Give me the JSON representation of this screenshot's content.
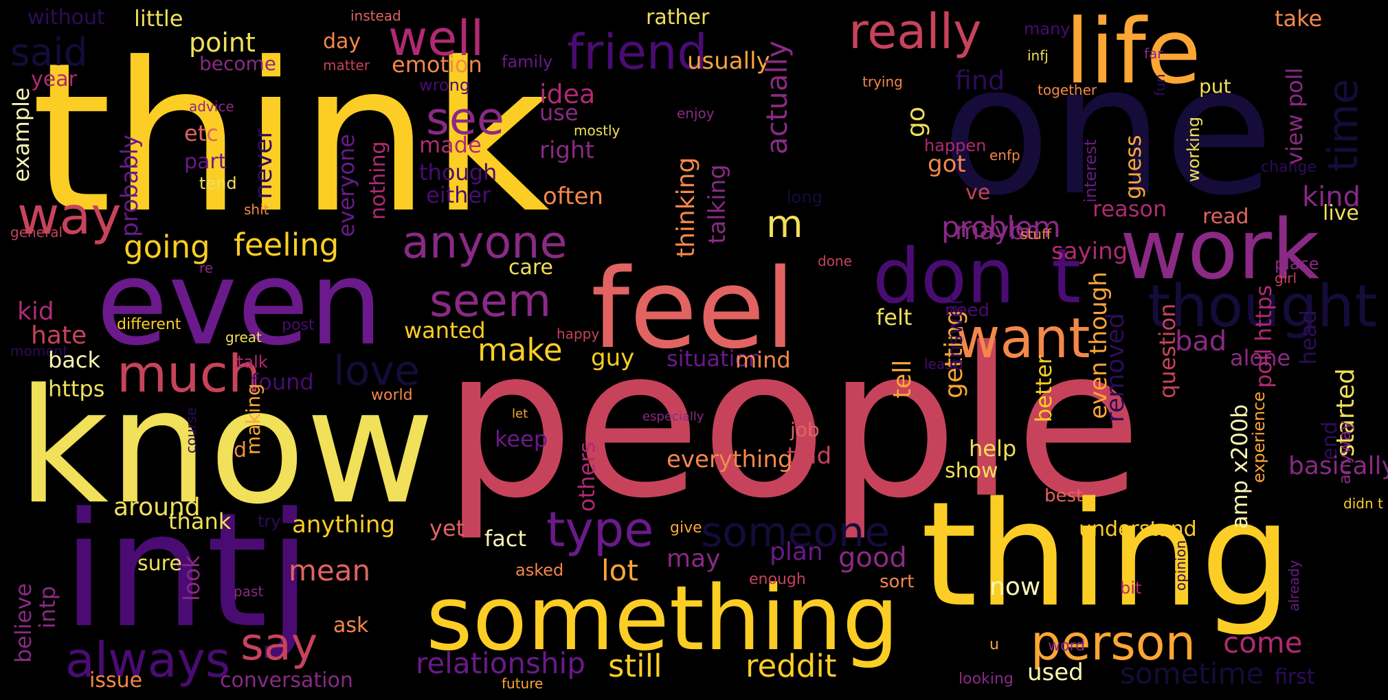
{
  "palette": {
    "background": "#000000",
    "c1": "#fcce25",
    "c2": "#f0e05a",
    "c3": "#fca636",
    "c4": "#f48849",
    "c5": "#e16462",
    "c6": "#c7435c",
    "c7": "#b02a73",
    "c8": "#8a2a85",
    "c9": "#6a1a8a",
    "c10": "#4a0c72",
    "c11": "#2d0c5a",
    "c12": "#150c3a",
    "c13": "#f8f5b4"
  },
  "words": [
    {
      "text": "think"
    },
    {
      "text": "people"
    },
    {
      "text": "know"
    },
    {
      "text": "one"
    },
    {
      "text": "intj"
    },
    {
      "text": "thing"
    },
    {
      "text": "even"
    },
    {
      "text": "feel"
    },
    {
      "text": "something"
    },
    {
      "text": "life"
    },
    {
      "text": "work"
    },
    {
      "text": "don"
    },
    {
      "text": "t"
    },
    {
      "text": "thought"
    },
    {
      "text": "want"
    },
    {
      "text": "person"
    },
    {
      "text": "always"
    },
    {
      "text": "way"
    },
    {
      "text": "friend"
    },
    {
      "text": "well"
    },
    {
      "text": "really"
    },
    {
      "text": "much"
    },
    {
      "text": "anyone"
    },
    {
      "text": "seem"
    },
    {
      "text": "see"
    },
    {
      "text": "say"
    },
    {
      "text": "love"
    },
    {
      "text": "someone"
    },
    {
      "text": "type"
    },
    {
      "text": "time"
    },
    {
      "text": "said"
    },
    {
      "text": "m"
    },
    {
      "text": "feeling"
    },
    {
      "text": "going"
    },
    {
      "text": "make"
    },
    {
      "text": "still"
    },
    {
      "text": "reddit"
    },
    {
      "text": "relationship"
    },
    {
      "text": "sometime"
    },
    {
      "text": "come"
    },
    {
      "text": "mean"
    },
    {
      "text": "lot"
    },
    {
      "text": "good"
    },
    {
      "text": "problem"
    },
    {
      "text": "kind"
    },
    {
      "text": "idea"
    },
    {
      "text": "point"
    },
    {
      "text": "little"
    },
    {
      "text": "without"
    },
    {
      "text": "rather"
    },
    {
      "text": "take"
    },
    {
      "text": "instead"
    },
    {
      "text": "many"
    },
    {
      "text": "day"
    },
    {
      "text": "emotion"
    },
    {
      "text": "usually"
    },
    {
      "text": "find"
    },
    {
      "text": "become"
    },
    {
      "text": "matter"
    },
    {
      "text": "family"
    },
    {
      "text": "year"
    },
    {
      "text": "wrong"
    },
    {
      "text": "far"
    },
    {
      "text": "infj"
    },
    {
      "text": "together"
    },
    {
      "text": "put"
    },
    {
      "text": "view poll"
    },
    {
      "text": "example"
    },
    {
      "text": "advice"
    },
    {
      "text": "use"
    },
    {
      "text": "mostly"
    },
    {
      "text": "enjoy"
    },
    {
      "text": "actually"
    },
    {
      "text": "trying"
    },
    {
      "text": "etc"
    },
    {
      "text": "made"
    },
    {
      "text": "right"
    },
    {
      "text": "though"
    },
    {
      "text": "either"
    },
    {
      "text": "often"
    },
    {
      "text": "part"
    },
    {
      "text": "tend"
    },
    {
      "text": "probably"
    },
    {
      "text": "never"
    },
    {
      "text": "everyone"
    },
    {
      "text": "nothing"
    },
    {
      "text": "thinking"
    },
    {
      "text": "talking"
    },
    {
      "text": "go"
    },
    {
      "text": "got"
    },
    {
      "text": "ve"
    },
    {
      "text": "happen"
    },
    {
      "text": "enfp"
    },
    {
      "text": "interest"
    },
    {
      "text": "guess"
    },
    {
      "text": "working"
    },
    {
      "text": "change"
    },
    {
      "text": "fun"
    },
    {
      "text": "long"
    },
    {
      "text": "reason"
    },
    {
      "text": "read"
    },
    {
      "text": "live"
    },
    {
      "text": "shit"
    },
    {
      "text": "general"
    },
    {
      "text": "maybe"
    },
    {
      "text": "stuff"
    },
    {
      "text": "done"
    },
    {
      "text": "saying"
    },
    {
      "text": "place"
    },
    {
      "text": "girl"
    },
    {
      "text": "re"
    },
    {
      "text": "care"
    },
    {
      "text": "kid"
    },
    {
      "text": "felt"
    },
    {
      "text": "need"
    },
    {
      "text": "hate"
    },
    {
      "text": "different"
    },
    {
      "text": "post"
    },
    {
      "text": "wanted"
    },
    {
      "text": "happy"
    },
    {
      "text": "great"
    },
    {
      "text": "moment"
    },
    {
      "text": "bad"
    },
    {
      "text": "alone"
    },
    {
      "text": "guy"
    },
    {
      "text": "situation"
    },
    {
      "text": "mind"
    },
    {
      "text": "back"
    },
    {
      "text": "talk"
    },
    {
      "text": "found"
    },
    {
      "text": "https"
    },
    {
      "text": "world"
    },
    {
      "text": "least"
    },
    {
      "text": "removed"
    },
    {
      "text": "even though"
    },
    {
      "text": "tell"
    },
    {
      "text": "getting"
    },
    {
      "text": "better"
    },
    {
      "text": "question"
    },
    {
      "text": "poll https"
    },
    {
      "text": "started"
    },
    {
      "text": "experience"
    },
    {
      "text": "anyway"
    },
    {
      "text": "amp x200b"
    },
    {
      "text": "end"
    },
    {
      "text": "others"
    },
    {
      "text": "answer"
    },
    {
      "text": "head"
    },
    {
      "text": "basically"
    },
    {
      "text": "job"
    },
    {
      "text": "d"
    },
    {
      "text": "making"
    },
    {
      "text": "keep"
    },
    {
      "text": "let"
    },
    {
      "text": "especially"
    },
    {
      "text": "help"
    },
    {
      "text": "told"
    },
    {
      "text": "show"
    },
    {
      "text": "course"
    },
    {
      "text": "best"
    },
    {
      "text": "everything"
    },
    {
      "text": "didn t"
    },
    {
      "text": "thank"
    },
    {
      "text": "try"
    },
    {
      "text": "around"
    },
    {
      "text": "anything"
    },
    {
      "text": "believe"
    },
    {
      "text": "intp"
    },
    {
      "text": "give"
    },
    {
      "text": "understand"
    },
    {
      "text": "may"
    },
    {
      "text": "plan"
    },
    {
      "text": "yet"
    },
    {
      "text": "fact"
    },
    {
      "text": "sure"
    },
    {
      "text": "look"
    },
    {
      "text": "past"
    },
    {
      "text": "asked"
    },
    {
      "text": "enough"
    },
    {
      "text": "sort"
    },
    {
      "text": "now"
    },
    {
      "text": "bit"
    },
    {
      "text": "opinion"
    },
    {
      "text": "already"
    },
    {
      "text": "ask"
    },
    {
      "text": "u"
    },
    {
      "text": "word"
    },
    {
      "text": "used"
    },
    {
      "text": "looking"
    },
    {
      "text": "issue"
    },
    {
      "text": "conversation"
    },
    {
      "text": "future"
    },
    {
      "text": "first"
    }
  ]
}
